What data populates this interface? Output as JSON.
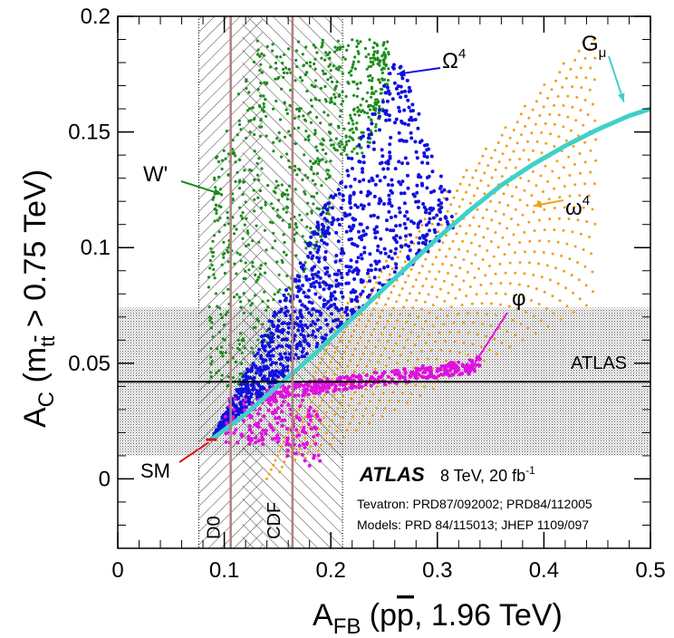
{
  "chart_data": {
    "type": "scatter",
    "title": "",
    "xlabel": {
      "main": "A",
      "sub": "FB",
      "rest": " (p",
      "pbar": "p",
      "tail": ", 1.96 TeV)"
    },
    "ylabel": {
      "main": "A",
      "sub": "C",
      "paren": " (m",
      "msub": "t",
      "msub2": "t",
      "tail": " > 0.75 TeV)"
    },
    "xlim": [
      0,
      0.5
    ],
    "ylim": [
      -0.03,
      0.2
    ],
    "xticks": [
      "0",
      "0.1",
      "0.2",
      "0.3",
      "0.4",
      "0.5"
    ],
    "yticks": [
      "0",
      "0.05",
      "0.1",
      "0.15",
      "0.2"
    ],
    "atlas_band": {
      "label": "ATLAS",
      "central": 0.042,
      "low": 0.01,
      "high": 0.074
    },
    "tevatron": {
      "D0": {
        "label": "D0",
        "central": 0.106,
        "low": 0.076,
        "high": 0.136
      },
      "CDF": {
        "label": "CDF",
        "central": 0.164,
        "low": 0.117,
        "high": 0.211
      }
    },
    "sm_point": {
      "label": "SM",
      "x": 0.088,
      "y": 0.017,
      "color": "#e01010"
    },
    "models": [
      {
        "label": "W'",
        "color": "#1e8c1e",
        "arrow_to": [
          0.098,
          0.123
        ]
      },
      {
        "label": "Ω",
        "sup": "4",
        "color": "#1010e0",
        "arrow_to": [
          0.262,
          0.175
        ]
      },
      {
        "label": "G",
        "sub": "μ",
        "color": "#40d0c8",
        "arrow_to": [
          0.475,
          0.163
        ]
      },
      {
        "label": "ω",
        "sup": "4",
        "color": "#f0a020",
        "arrow_to": [
          0.39,
          0.118
        ]
      },
      {
        "label": "φ",
        "color": "#e010e0",
        "arrow_to": [
          0.335,
          0.05
        ]
      }
    ],
    "gmu_curve": {
      "x": [
        0.088,
        0.12,
        0.15,
        0.18,
        0.21,
        0.24,
        0.27,
        0.3,
        0.33,
        0.36,
        0.39,
        0.42,
        0.45,
        0.48,
        0.5
      ],
      "y": [
        0.017,
        0.028,
        0.04,
        0.052,
        0.065,
        0.078,
        0.091,
        0.104,
        0.116,
        0.127,
        0.136,
        0.144,
        0.151,
        0.157,
        0.16
      ]
    },
    "legend": {
      "atlas_label": "ATLAS",
      "energy": "8 TeV, 20 fb",
      "lumi_sup": "-1",
      "tevatron_ref": "Tevatron: PRD87/092002; PRD84/112005",
      "models_ref": "Models: PRD 84/115013; JHEP 1109/097"
    }
  }
}
